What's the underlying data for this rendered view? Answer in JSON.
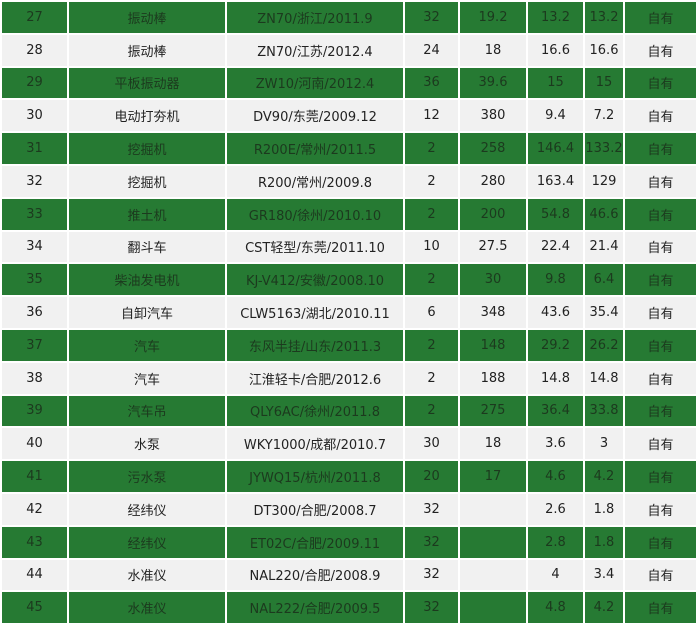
{
  "table": {
    "rows": [
      [
        "27",
        "振动棒",
        "ZN70/浙江/2011.9",
        "32",
        "19.2",
        "13.2",
        "13.2",
        "自有"
      ],
      [
        "28",
        "振动棒",
        "ZN70/江苏/2012.4",
        "24",
        "18",
        "16.6",
        "16.6",
        "自有"
      ],
      [
        "29",
        "平板振动器",
        "ZW10/河南/2012.4",
        "36",
        "39.6",
        "15",
        "15",
        "自有"
      ],
      [
        "30",
        "电动打夯机",
        "DV90/东莞/2009.12",
        "12",
        "380",
        "9.4",
        "7.2",
        "自有"
      ],
      [
        "31",
        "挖掘机",
        "R200E/常州/2011.5",
        "2",
        "258",
        "146.4",
        "133.2",
        "自有"
      ],
      [
        "32",
        "挖掘机",
        "R200/常州/2009.8",
        "2",
        "280",
        "163.4",
        "129",
        "自有"
      ],
      [
        "33",
        "推土机",
        "GR180/徐州/2010.10",
        "2",
        "200",
        "54.8",
        "46.6",
        "自有"
      ],
      [
        "34",
        "翻斗车",
        "CST轻型/东莞/2011.10",
        "10",
        "27.5",
        "22.4",
        "21.4",
        "自有"
      ],
      [
        "35",
        "柴油发电机",
        "KJ-V412/安徽/2008.10",
        "2",
        "30",
        "9.8",
        "6.4",
        "自有"
      ],
      [
        "36",
        "自卸汽车",
        "CLW5163/湖北/2010.11",
        "6",
        "348",
        "43.6",
        "35.4",
        "自有"
      ],
      [
        "37",
        "汽车",
        "东风半挂/山东/2011.3",
        "2",
        "148",
        "29.2",
        "26.2",
        "自有"
      ],
      [
        "38",
        "汽车",
        "江淮轻卡/合肥/2012.6",
        "2",
        "188",
        "14.8",
        "14.8",
        "自有"
      ],
      [
        "39",
        "汽车吊",
        "QLY6AC/徐州/2011.8",
        "2",
        "275",
        "36.4",
        "33.8",
        "自有"
      ],
      [
        "40",
        "水泵",
        "WKY1000/成都/2010.7",
        "30",
        "18",
        "3.6",
        "3",
        "自有"
      ],
      [
        "41",
        "污水泵",
        "JYWQ15/杭州/2011.8",
        "20",
        "17",
        "4.6",
        "4.2",
        "自有"
      ],
      [
        "42",
        "经纬仪",
        "DT300/合肥/2008.7",
        "32",
        null,
        "2.6",
        "1.8",
        "自有"
      ],
      [
        "43",
        "经纬仪",
        "ET02C/合肥/2009.11",
        "32",
        null,
        "2.8",
        "1.8",
        "自有"
      ],
      [
        "44",
        "水准仪",
        "NAL220/合肥/2008.9",
        "32",
        null,
        "4",
        "3.4",
        "自有"
      ],
      [
        "45",
        "水准仪",
        "NAL222/合肥/2009.5",
        "32",
        null,
        "4.8",
        "4.2",
        "自有"
      ]
    ]
  }
}
